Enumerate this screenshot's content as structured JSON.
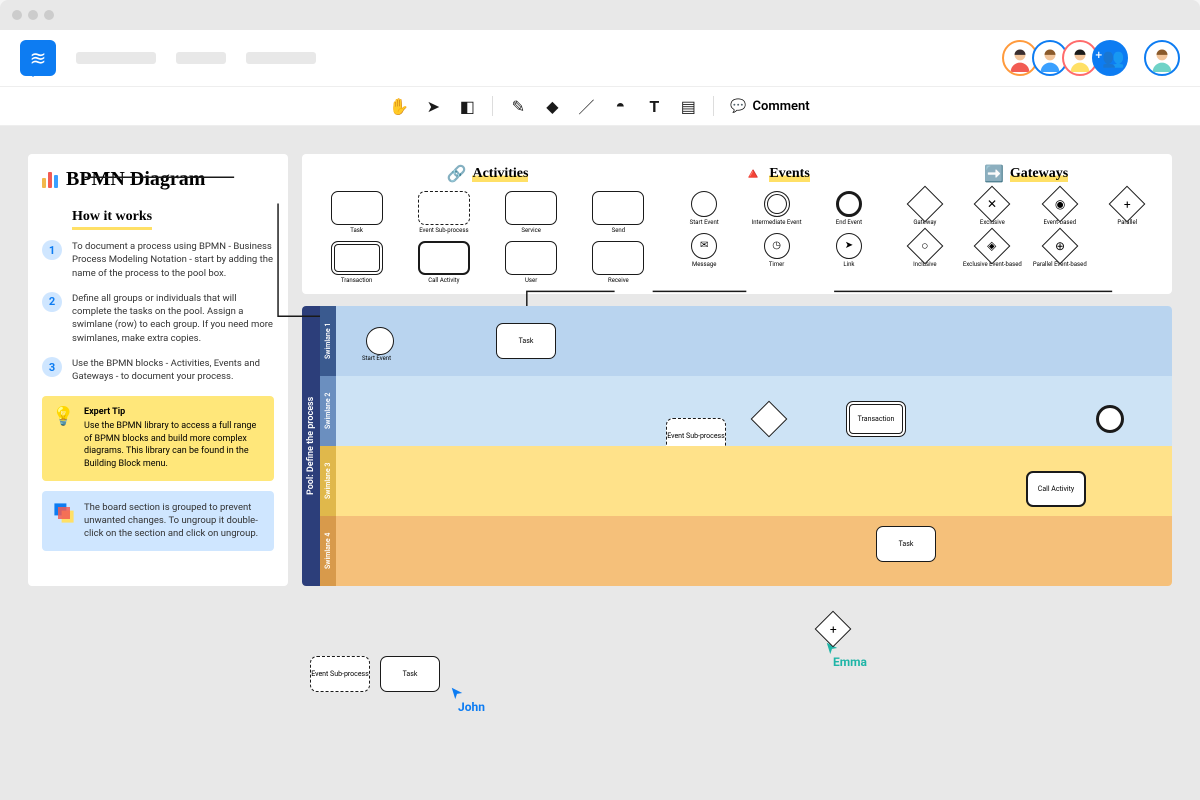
{
  "toolbar": {
    "comment_label": "Comment"
  },
  "avatars": [
    {
      "border": "#ff9a3c",
      "hair": "#3a2e2e",
      "skin": "#f2c59b",
      "shirt": "#f25c54"
    },
    {
      "border": "#0d7cf2",
      "hair": "#8a5a2b",
      "skin": "#f2c59b",
      "shirt": "#3aa0ff"
    },
    {
      "border": "#ff6b6b",
      "hair": "#1a1a1a",
      "skin": "#f2c59b",
      "shirt": "#ffe066"
    }
  ],
  "user_avatar": {
    "border": "#0d7cf2",
    "hair": "#8a5a2b",
    "skin": "#f2c59b",
    "shirt": "#6fd3c7"
  },
  "info": {
    "title": "BPMN Diagram",
    "bars": [
      {
        "h": 10,
        "c": "#f2b84b"
      },
      {
        "h": 16,
        "c": "#f25c54"
      },
      {
        "h": 13,
        "c": "#3aa0ff"
      }
    ],
    "how_it_works": "How it works",
    "steps": [
      {
        "n": "1",
        "t": "To document a process using BPMN - Business Process Modeling Notation - start by adding the name of the process to the pool box."
      },
      {
        "n": "2",
        "t": "Define all groups or individuals that will complete the tasks on the pool. Assign a swimlane (row) to each group. If you need more swimlanes, make extra copies."
      },
      {
        "n": "3",
        "t": "Use the BPMN blocks - Activities, Events and Gateways - to document your process."
      }
    ],
    "tip": {
      "title": "Expert Tip",
      "body": "Use the BPMN library to access a full range of BPMN blocks and build more complex diagrams. This library can be found in the Building Block menu."
    },
    "note": "The board section is grouped to prevent unwanted changes. To ungroup it double-click on the section and click on ungroup."
  },
  "palette": {
    "activities": {
      "title": "Activities",
      "items": [
        {
          "label": "Task",
          "variant": ""
        },
        {
          "label": "Event Sub-process",
          "variant": "dashed"
        },
        {
          "label": "Service",
          "variant": ""
        },
        {
          "label": "Send",
          "variant": ""
        },
        {
          "label": "Transaction",
          "variant": "double"
        },
        {
          "label": "Call Activity",
          "variant": "thick"
        },
        {
          "label": "User",
          "variant": ""
        },
        {
          "label": "Receive",
          "variant": ""
        }
      ]
    },
    "events": {
      "title": "Events",
      "items": [
        {
          "label": "Start Event",
          "variant": ""
        },
        {
          "label": "Intermediate Event",
          "variant": "dbl"
        },
        {
          "label": "End Event",
          "variant": "thk"
        },
        {
          "label": "Message",
          "variant": "",
          "glyph": "✉"
        },
        {
          "label": "Timer",
          "variant": "",
          "glyph": "◷"
        },
        {
          "label": "Link",
          "variant": "",
          "glyph": "➤"
        }
      ]
    },
    "gateways": {
      "title": "Gateways",
      "items": [
        {
          "label": "Gateway",
          "glyph": ""
        },
        {
          "label": "Exclusive",
          "glyph": "✕"
        },
        {
          "label": "Event-based",
          "glyph": "◉"
        },
        {
          "label": "Parallel",
          "glyph": "+"
        },
        {
          "label": "Inclusive",
          "glyph": "○"
        },
        {
          "label": "Exclusive Event-based",
          "glyph": "◈"
        },
        {
          "label": "Parallel Event-based",
          "glyph": "⊕"
        }
      ]
    }
  },
  "pool": {
    "label": "Pool: Define the process",
    "lanes": [
      {
        "label": "Swimlane 1",
        "bg": "#b9d4ef",
        "lab_bg": "#3a5a8f"
      },
      {
        "label": "Swimlane 2",
        "bg": "#cde3f5",
        "lab_bg": "#6b8fbf"
      },
      {
        "label": "Swimlane 3",
        "bg": "#ffe28a",
        "lab_bg": "#e0b84b"
      },
      {
        "label": "Swimlane 4",
        "bg": "#f5c07a",
        "lab_bg": "#d89a4b"
      }
    ],
    "nodes": {
      "start": "Start Event",
      "task1": "Task",
      "esp": "Event Sub-process",
      "gateway": "Gateway",
      "txn": "Transaction",
      "end": "End Event",
      "call": "Call Activity",
      "task2": "Task"
    }
  },
  "cursors": {
    "john": {
      "name": "John",
      "color": "#0d7cf2"
    },
    "emma": {
      "name": "Emma",
      "color": "#1fb5a7"
    }
  },
  "floating": {
    "esp": "Event Sub-process",
    "task": "Task"
  }
}
